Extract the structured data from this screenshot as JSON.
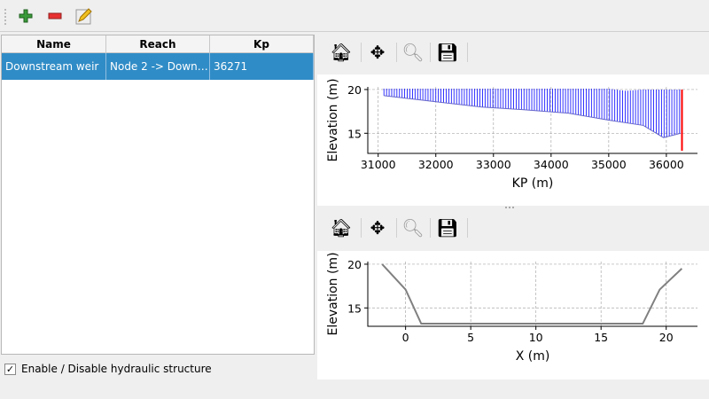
{
  "toolbar": {
    "icons": [
      "add-icon",
      "remove-icon",
      "edit-icon"
    ]
  },
  "table": {
    "columns": [
      "Name",
      "Reach",
      "Kp"
    ],
    "rows": [
      [
        "Downstream weir",
        "Node 2 -> Down…",
        "36271"
      ]
    ]
  },
  "checkbox": {
    "label": "Enable / Disable hydraulic structure",
    "checked": true,
    "mark": "✓"
  },
  "plot_toolbar": {
    "icons": [
      "home-icon",
      "pan-icon",
      "zoom-icon",
      "save-icon"
    ]
  },
  "chart_data": [
    {
      "type": "line",
      "xlabel": "KP (m)",
      "ylabel": "Elevation (m)",
      "xlim": [
        30820,
        36540
      ],
      "ylim": [
        12.7,
        20.3
      ],
      "xticks": [
        31000,
        32000,
        33000,
        34000,
        35000,
        36000
      ],
      "yticks": [
        15,
        20
      ],
      "grid": true,
      "bed_profile": {
        "x": [
          31100,
          32000,
          32800,
          33500,
          34300,
          35000,
          35600,
          35950,
          36250
        ],
        "y": [
          19.3,
          18.6,
          18.0,
          17.7,
          17.3,
          16.5,
          15.9,
          14.5,
          15.0
        ]
      },
      "water_top": {
        "x": [
          31100,
          35000,
          35300,
          35600,
          36250
        ],
        "y": [
          20.1,
          20.1,
          19.85,
          20.0,
          20.0
        ]
      },
      "section_color": "#0000ff",
      "selected": {
        "kp": 36271,
        "y": [
          13.0,
          20.0
        ],
        "color": "#ff0000"
      }
    },
    {
      "type": "line",
      "xlabel": "X (m)",
      "ylabel": "Elevation (m)",
      "xlim": [
        -2.9,
        22.4
      ],
      "ylim": [
        12.9,
        20.3
      ],
      "xticks": [
        0,
        5,
        10,
        15,
        20
      ],
      "yticks": [
        15,
        20
      ],
      "grid": true,
      "color": "#808080",
      "x": [
        -1.8,
        0,
        1.2,
        18.2,
        19.5,
        21.2
      ],
      "y": [
        20.0,
        17.1,
        13.2,
        13.2,
        17.1,
        19.5
      ]
    }
  ]
}
